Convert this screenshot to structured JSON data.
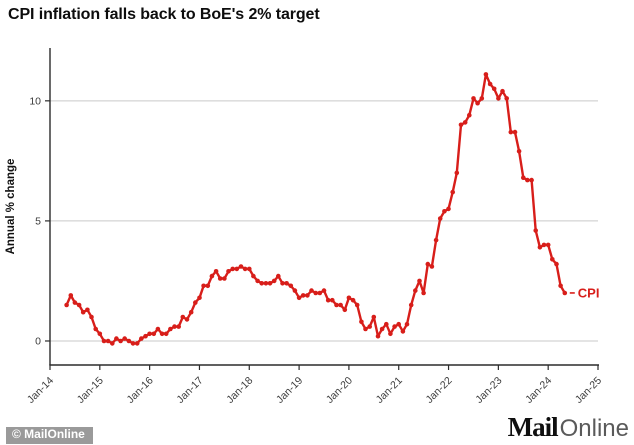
{
  "header": {
    "title": "CPI inflation falls back to BoE's 2% target"
  },
  "footer": {
    "copyright": "© MailOnline",
    "brand_mail": "Mail",
    "brand_online": "Online"
  },
  "chart_data": {
    "type": "line",
    "title": "CPI inflation falls back to BoE's 2% target",
    "xlabel": "",
    "ylabel": "Annual % change",
    "grid": true,
    "legend_position": "end-of-line",
    "line_color": "#d81e1a",
    "grid_color": "#c9c9c9",
    "axis_color": "#2b2b2b",
    "x_tick_labels": [
      "Jan-14",
      "Jan-15",
      "Jan-16",
      "Jan-17",
      "Jan-18",
      "Jan-19",
      "Jan-20",
      "Jan-21",
      "Jan-22",
      "Jan-23",
      "Jan-24",
      "Jan-25"
    ],
    "x_axis_span_months": 132,
    "series_start_offset_months": 4,
    "y_ticks": [
      0,
      5,
      10
    ],
    "ylim": [
      -1,
      12.2
    ],
    "series": [
      {
        "name": "CPI",
        "start_month": "May-2014",
        "end_month": "May-2024",
        "frequency": "monthly",
        "values": [
          1.5,
          1.9,
          1.6,
          1.5,
          1.2,
          1.3,
          1.0,
          0.5,
          0.3,
          0.0,
          0.0,
          -0.1,
          0.1,
          0.0,
          0.1,
          0.0,
          -0.1,
          -0.1,
          0.1,
          0.2,
          0.3,
          0.3,
          0.5,
          0.3,
          0.3,
          0.5,
          0.6,
          0.6,
          1.0,
          0.9,
          1.2,
          1.6,
          1.8,
          2.3,
          2.3,
          2.7,
          2.9,
          2.6,
          2.6,
          2.9,
          3.0,
          3.0,
          3.1,
          3.0,
          3.0,
          2.7,
          2.5,
          2.4,
          2.4,
          2.4,
          2.5,
          2.7,
          2.4,
          2.4,
          2.3,
          2.1,
          1.8,
          1.9,
          1.9,
          2.1,
          2.0,
          2.0,
          2.1,
          1.7,
          1.7,
          1.5,
          1.5,
          1.3,
          1.8,
          1.7,
          1.5,
          0.8,
          0.5,
          0.6,
          1.0,
          0.2,
          0.5,
          0.7,
          0.3,
          0.6,
          0.7,
          0.4,
          0.7,
          1.5,
          2.1,
          2.5,
          2.0,
          3.2,
          3.1,
          4.2,
          5.1,
          5.4,
          5.5,
          6.2,
          7.0,
          9.0,
          9.1,
          9.4,
          10.1,
          9.9,
          10.1,
          11.1,
          10.7,
          10.5,
          10.1,
          10.4,
          10.1,
          8.7,
          8.7,
          7.9,
          6.8,
          6.7,
          6.7,
          4.6,
          3.9,
          4.0,
          4.0,
          3.4,
          3.2,
          2.3,
          2.0
        ]
      }
    ]
  }
}
